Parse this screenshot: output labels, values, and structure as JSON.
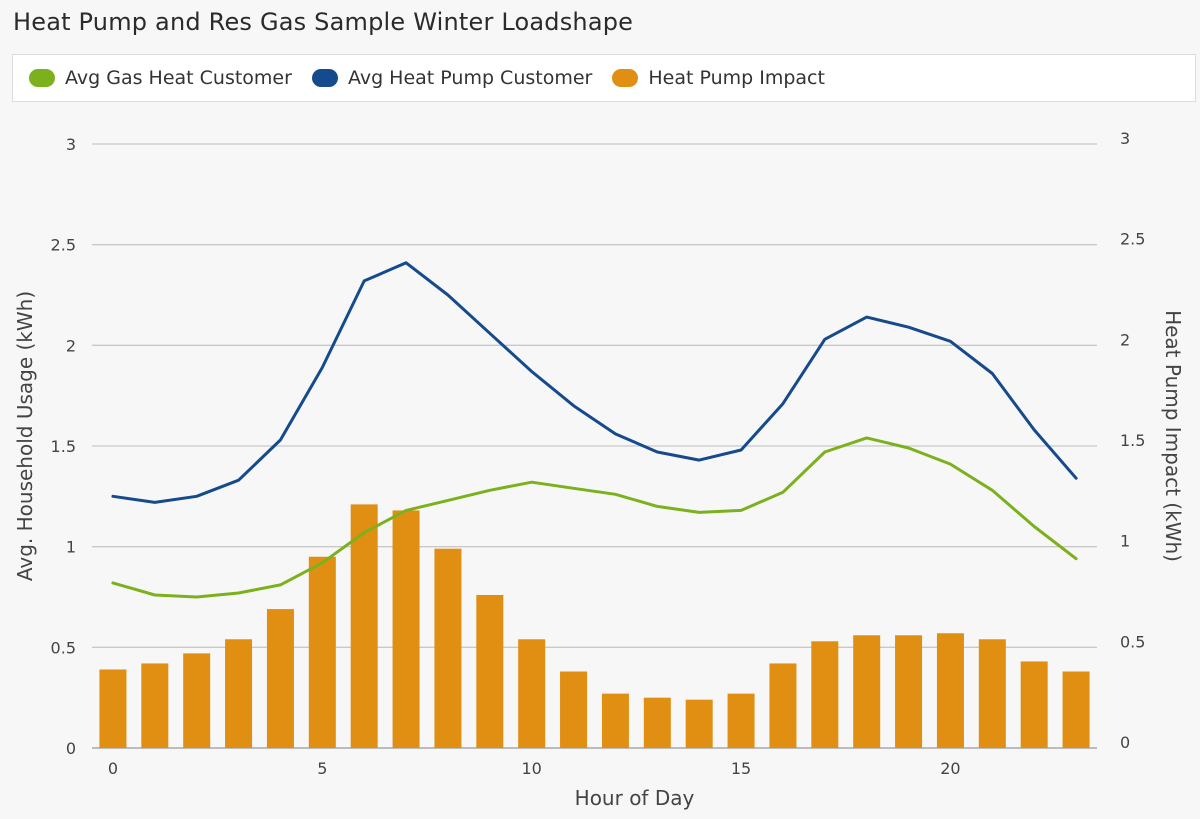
{
  "chart_data": {
    "type": "bar+line",
    "title": "Heat Pump and Res Gas Sample Winter Loadshape",
    "xlabel": "Hour of Day",
    "ylabel_left": "Avg. Household Usage (kWh)",
    "ylabel_right": "Heat Pump Impact (kWh)",
    "xlim": [
      -0.5,
      23.5
    ],
    "ylim_left": [
      0,
      3
    ],
    "ylim_right": [
      0,
      3
    ],
    "x_ticks": [
      0,
      5,
      10,
      15,
      20
    ],
    "y_ticks_left": [
      "0",
      "0.5",
      "1",
      "1.5",
      "2",
      "2.5",
      "3"
    ],
    "y_ticks_right": [
      "0",
      "0.5",
      "1",
      "1.5",
      "2",
      "2.5",
      "3"
    ],
    "grid": true,
    "legend": "top",
    "x": [
      0,
      1,
      2,
      3,
      4,
      5,
      6,
      7,
      8,
      9,
      10,
      11,
      12,
      13,
      14,
      15,
      16,
      17,
      18,
      19,
      20,
      21,
      22,
      23
    ],
    "series": [
      {
        "name": "Avg Gas Heat Customer",
        "type": "line",
        "axis": "left",
        "color": "#7cb11d",
        "values": [
          0.82,
          0.76,
          0.75,
          0.77,
          0.81,
          0.92,
          1.07,
          1.18,
          1.23,
          1.28,
          1.32,
          1.29,
          1.26,
          1.2,
          1.17,
          1.18,
          1.27,
          1.47,
          1.54,
          1.49,
          1.41,
          1.28,
          1.1,
          0.94
        ]
      },
      {
        "name": "Avg Heat Pump Customer",
        "type": "line",
        "axis": "left",
        "color": "#154a8c",
        "values": [
          1.25,
          1.22,
          1.25,
          1.33,
          1.53,
          1.89,
          2.32,
          2.41,
          2.25,
          2.06,
          1.87,
          1.7,
          1.56,
          1.47,
          1.43,
          1.48,
          1.71,
          2.03,
          2.14,
          2.09,
          2.02,
          1.86,
          1.58,
          1.34
        ]
      },
      {
        "name": "Heat Pump Impact",
        "type": "bar",
        "axis": "right",
        "color": "#e08f13",
        "values": [
          0.39,
          0.42,
          0.47,
          0.54,
          0.69,
          0.95,
          1.21,
          1.18,
          0.99,
          0.76,
          0.54,
          0.38,
          0.27,
          0.25,
          0.24,
          0.27,
          0.42,
          0.53,
          0.56,
          0.56,
          0.57,
          0.54,
          0.43,
          0.38
        ]
      }
    ]
  }
}
